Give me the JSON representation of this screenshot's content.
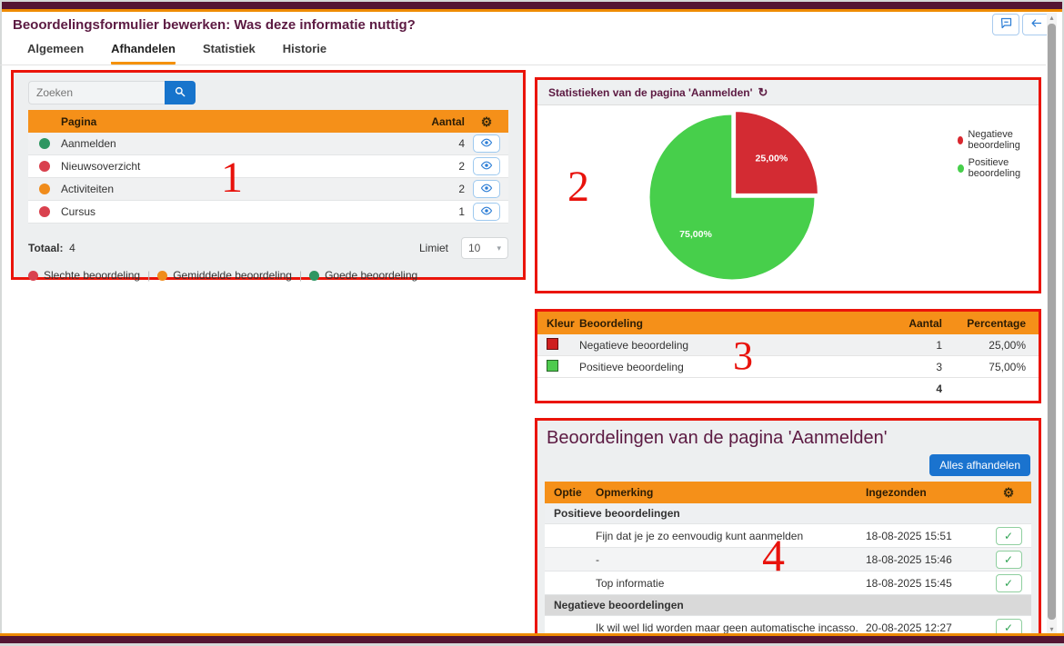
{
  "header": {
    "title": "Beoordelingsformulier bewerken: Was deze informatie nuttig?"
  },
  "tabs": [
    {
      "label": "Algemeen",
      "active": false
    },
    {
      "label": "Afhandelen",
      "active": true
    },
    {
      "label": "Statistiek",
      "active": false
    },
    {
      "label": "Historie",
      "active": false
    }
  ],
  "pages_panel": {
    "search_placeholder": "Zoeken",
    "columns": {
      "page": "Pagina",
      "count": "Aantal"
    },
    "rows": [
      {
        "status": "goed",
        "status_color": "#2e9661",
        "label": "Aanmelden",
        "count": "4"
      },
      {
        "status": "slecht",
        "status_color": "#d9414e",
        "label": "Nieuwsoverzicht",
        "count": "2"
      },
      {
        "status": "gemiddeld",
        "status_color": "#f08c1c",
        "label": "Activiteiten",
        "count": "2"
      },
      {
        "status": "slecht",
        "status_color": "#d9414e",
        "label": "Cursus",
        "count": "1"
      }
    ],
    "total_label": "Totaal:",
    "total_value": "4",
    "limit_label": "Limiet",
    "limit_value": "10",
    "legend": [
      {
        "label": "Slechte beoordeling",
        "color": "#d9414e"
      },
      {
        "label": "Gemiddelde beoordeling",
        "color": "#f08c1c"
      },
      {
        "label": "Goede beoordeling",
        "color": "#2e9661"
      }
    ]
  },
  "stats_panel": {
    "title": "Statistieken van de pagina 'Aanmelden'",
    "legend": [
      {
        "label": "Negatieve beoordeling",
        "color": "#d9272e"
      },
      {
        "label": "Positieve beoordeling",
        "color": "#47cf4b"
      }
    ]
  },
  "chart_data": {
    "type": "pie",
    "title": "Statistieken van de pagina 'Aanmelden'",
    "labels": [
      "Negatieve beoordeling",
      "Positieve beoordeling"
    ],
    "values": [
      25,
      75
    ],
    "counts": [
      1,
      3
    ],
    "value_labels": [
      "25,00%",
      "75,00%"
    ],
    "colors": [
      "#d32b33",
      "#47cf4b"
    ],
    "exploded": [
      true,
      false
    ],
    "start_angle_deg": -90,
    "direction": "clockwise",
    "legend_position": "right"
  },
  "ratio_table": {
    "columns": {
      "kleur": "Kleur",
      "beoordeling": "Beoordeling",
      "aantal": "Aantal",
      "percentage": "Percentage"
    },
    "rows": [
      {
        "color": "#cf2020",
        "label": "Negatieve beoordeling",
        "count": "1",
        "pct": "25,00%"
      },
      {
        "color": "#4ecb4e",
        "label": "Positieve beoordeling",
        "count": "3",
        "pct": "75,00%"
      }
    ],
    "total": "4"
  },
  "reviews_panel": {
    "title": "Beoordelingen van de pagina 'Aanmelden'",
    "action_button": "Alles afhandelen",
    "columns": {
      "optie": "Optie",
      "opmerking": "Opmerking",
      "ingezonden": "Ingezonden"
    },
    "sections": [
      {
        "label": "Positieve beoordelingen",
        "rows": [
          {
            "comment": "Fijn dat je je zo eenvoudig kunt aanmelden",
            "date": "18-08-2025 15:51"
          },
          {
            "comment": "-",
            "date": "18-08-2025 15:46"
          },
          {
            "comment": "Top informatie",
            "date": "18-08-2025 15:45"
          }
        ]
      },
      {
        "label": "Negatieve beoordelingen",
        "rows": [
          {
            "comment": "Ik wil wel lid worden maar geen automatische incasso.",
            "date": "20-08-2025 12:27"
          }
        ]
      }
    ]
  },
  "annotations": {
    "n1": "1",
    "n2": "2",
    "n3": "3",
    "n4": "4"
  }
}
